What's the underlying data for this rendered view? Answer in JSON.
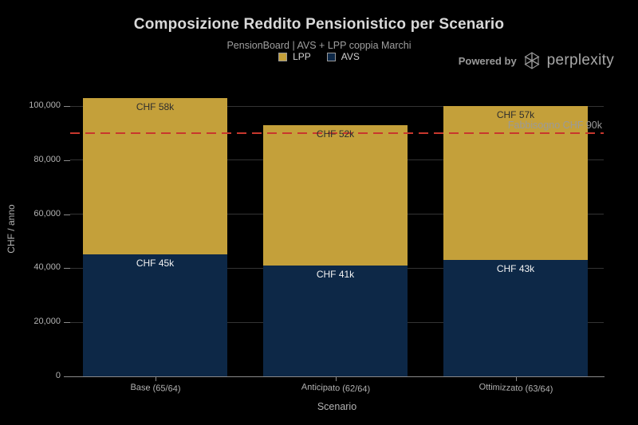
{
  "powered_by": {
    "prefix": "Powered by",
    "brand": "perplexity"
  },
  "axes": {
    "y_ticks": [
      "0",
      "20,000",
      "40,000",
      "60,000",
      "80,000",
      "100,000"
    ],
    "y_tick_values": [
      0,
      20000,
      40000,
      60000,
      80000,
      100000
    ]
  },
  "colors": {
    "background": "#000000",
    "grid": "#333333",
    "axis": "#8a8a8a",
    "tick_label": "#b3b3b3",
    "title": "#d9d9d9",
    "subtitle": "#9f9f9f",
    "lpp_gold": "#c4a03a",
    "avs_navy": "#0d2847",
    "threshold_red": "#c8372d"
  },
  "chart_data": {
    "type": "bar",
    "stacked": true,
    "title": "Composizione Reddito Pensionistico per Scenario",
    "subtitle": "PensionBoard | AVS + LPP coppia Marchi",
    "xlabel": "Scenario",
    "ylabel": "CHF / anno",
    "categories": [
      "Base (65/64)",
      "Anticipato (62/64)",
      "Ottimizzato (63/64)"
    ],
    "series": [
      {
        "name": "AVS",
        "color": "#0d2847",
        "values": [
          45000,
          41000,
          43000
        ],
        "data_labels": [
          "CHF 45k",
          "CHF 41k",
          "CHF 43k"
        ],
        "label_color": "#f2f2f2"
      },
      {
        "name": "LPP",
        "color": "#c4a03a",
        "values": [
          58000,
          52000,
          57000
        ],
        "data_labels": [
          "CHF 58k",
          "CHF 52k",
          "CHF 57k"
        ],
        "label_color": "#2e2e2e"
      }
    ],
    "totals": [
      103000,
      93000,
      100000
    ],
    "threshold": {
      "value": 90000,
      "label": "Fabbisogno CHF 90k",
      "line_color": "#c8372d",
      "label_color": "#9a9a9a"
    },
    "ylim": [
      0,
      109000
    ],
    "grid": true,
    "legend_order": [
      "LPP",
      "AVS"
    ],
    "legend_position": "upper center"
  }
}
